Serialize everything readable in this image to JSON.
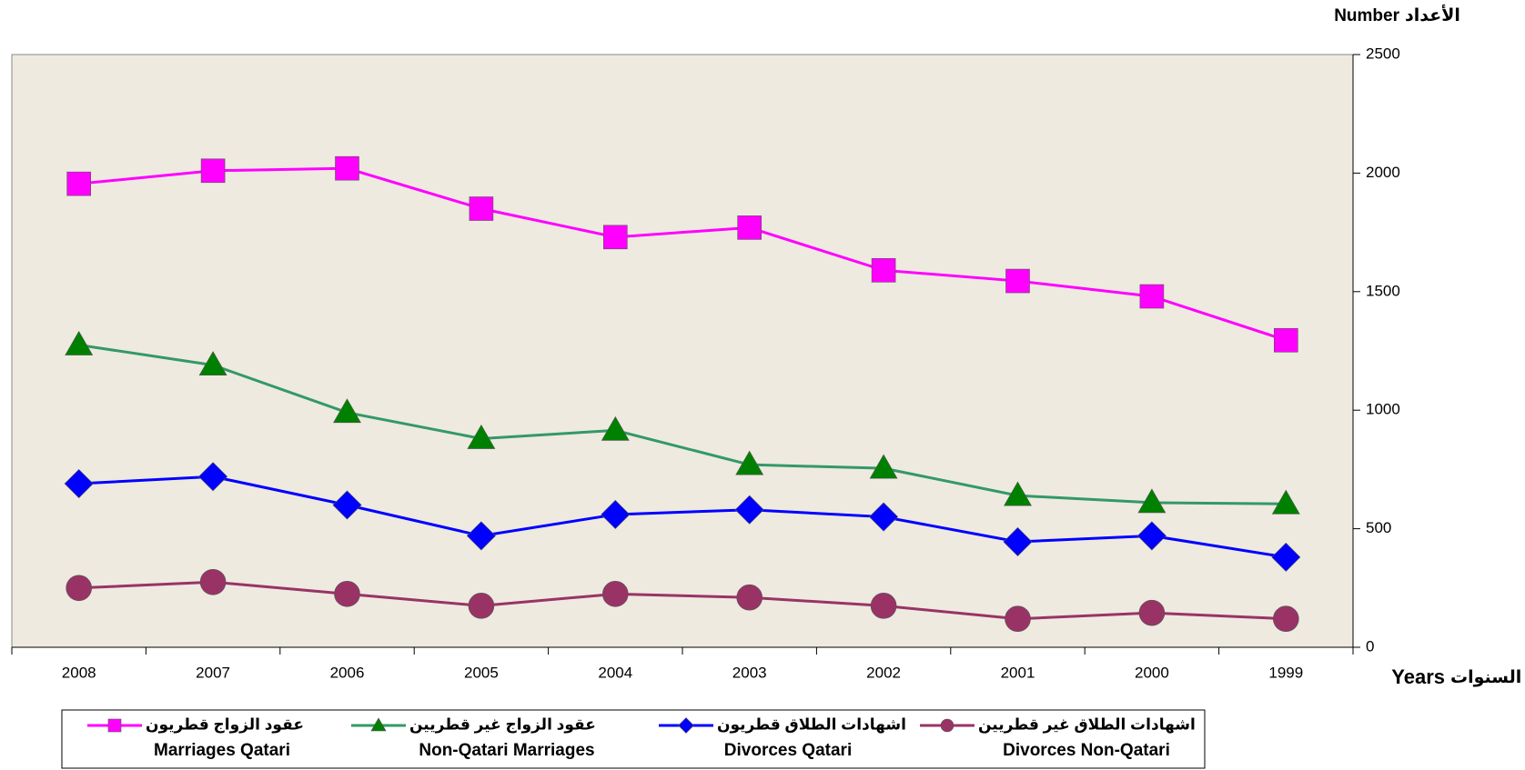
{
  "chart_data": {
    "type": "line",
    "y_label": {
      "en": "Number",
      "ar": "الأعداد"
    },
    "x_label": {
      "en": "Years",
      "ar": "السنوات"
    },
    "categories": [
      "2008",
      "2007",
      "2006",
      "2005",
      "2004",
      "2003",
      "2002",
      "2001",
      "2000",
      "1999"
    ],
    "series": [
      {
        "name": "Marriages Qatari",
        "name_ar": "عقود الزواج قطريون",
        "color": "#ff00ff",
        "marker": "square",
        "marker_color": "#ff00ff",
        "values": [
          1955,
          2010,
          2020,
          1850,
          1730,
          1770,
          1590,
          1545,
          1480,
          1295
        ]
      },
      {
        "name": "Non-Qatari Marriages",
        "name_ar": "عقود الزواج غير قطريين",
        "color": "#339966",
        "marker": "triangle",
        "marker_color": "#008000",
        "values": [
          1275,
          1190,
          990,
          880,
          915,
          770,
          755,
          640,
          610,
          605
        ]
      },
      {
        "name": "Divorces Qatari",
        "name_ar": "اشهادات الطلاق قطريون",
        "color": "#0000ff",
        "marker": "diamond",
        "marker_color": "#0000ff",
        "values": [
          690,
          720,
          600,
          470,
          560,
          580,
          550,
          445,
          470,
          380
        ]
      },
      {
        "name": "Divorces Non-Qatari",
        "name_ar": "اشهادات الطلاق غير قطريين",
        "color": "#993366",
        "marker": "circle",
        "marker_color": "#993366",
        "values": [
          250,
          275,
          225,
          175,
          225,
          210,
          175,
          120,
          145,
          120
        ]
      }
    ],
    "ylim": [
      0,
      2500
    ],
    "yticks": [
      0,
      500,
      1000,
      1500,
      2000,
      2500
    ],
    "y_axis_side": "right",
    "grid": false,
    "plot_background": "#eeeae0",
    "legend": "bottom"
  }
}
